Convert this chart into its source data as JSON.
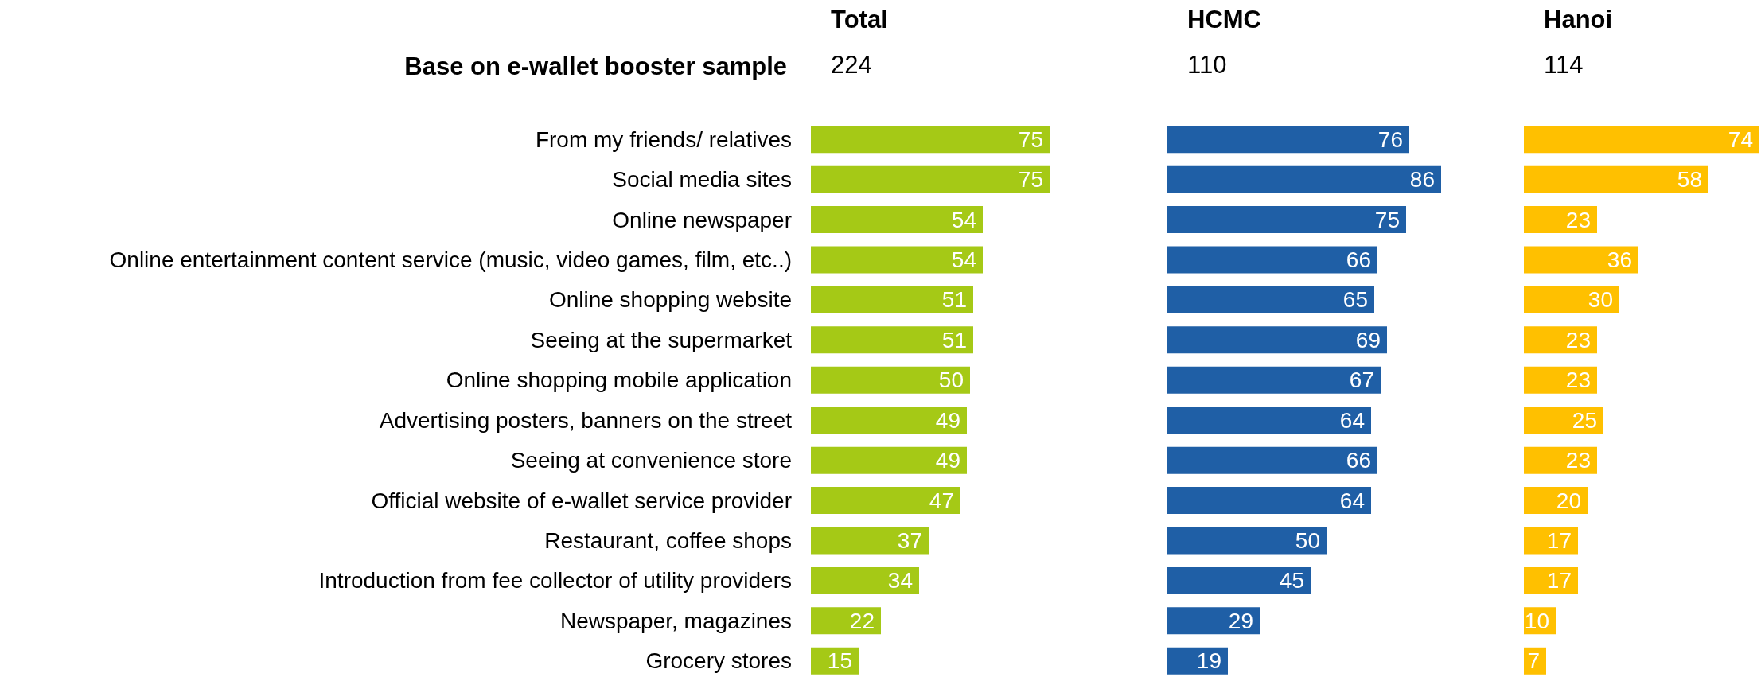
{
  "chart_data": [
    {
      "type": "bar",
      "orientation": "horizontal",
      "title": "Total",
      "subtitle": "224",
      "annotations": [
        "Base on e-wallet booster sample"
      ],
      "categories": [
        "From my friends/ relatives",
        "Social media sites",
        "Online newspaper",
        "Online entertainment content service (music, video games, film, etc..)",
        "Online shopping website",
        "Seeing at the supermarket",
        "Online shopping mobile application",
        "Advertising posters, banners on the street",
        "Seeing at convenience store",
        "Official website of e-wallet service provider",
        "Restaurant, coffee shops",
        "Introduction from fee collector of utility providers",
        "Newspaper, magazines",
        "Grocery stores"
      ],
      "values": [
        75,
        75,
        54,
        54,
        51,
        51,
        50,
        49,
        49,
        47,
        37,
        34,
        22,
        15
      ],
      "color": "#a5c916",
      "data_labels": true,
      "tick_labels": "y"
    },
    {
      "type": "bar",
      "orientation": "horizontal",
      "title": "HCMC",
      "subtitle": "110",
      "categories": [
        null,
        null,
        null,
        null,
        null,
        null,
        null,
        null,
        null,
        null,
        null,
        null,
        null,
        null
      ],
      "values": [
        76,
        86,
        75,
        66,
        65,
        69,
        67,
        64,
        66,
        64,
        50,
        45,
        29,
        19
      ],
      "color": "#1f5fa6",
      "data_labels": true,
      "tick_labels": false
    },
    {
      "type": "bar",
      "orientation": "horizontal",
      "title": "Hanoi",
      "subtitle": "114",
      "categories": [
        null,
        null,
        null,
        null,
        null,
        null,
        null,
        null,
        null,
        null,
        null,
        null,
        null,
        null
      ],
      "values": [
        74,
        58,
        23,
        36,
        30,
        23,
        23,
        25,
        23,
        20,
        17,
        17,
        10,
        7
      ],
      "color": "#ffc000",
      "data_labels": true,
      "tick_labels": false
    }
  ]
}
